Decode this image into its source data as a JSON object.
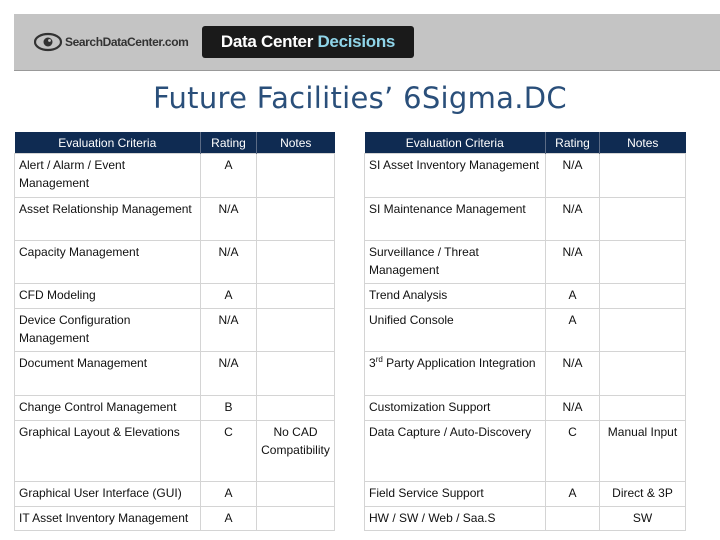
{
  "banner": {
    "logo_text": "SearchDataCenter.com",
    "product_part1": "Data Center ",
    "product_part2": "Decisions",
    "colors": {
      "banner_bg": "#c4c4c4",
      "product_bg": "#1a1a1a",
      "accent": "#8fd4e8"
    }
  },
  "title": "Future Facilities’ 6Sigma.DC",
  "table_header": {
    "criteria": "Evaluation Criteria",
    "rating": "Rating",
    "notes": "Notes",
    "color": "#0f2b52"
  },
  "left_rows": [
    {
      "criteria": "Alert / Alarm / Event Management",
      "rating": "A",
      "notes": ""
    },
    {
      "criteria": "Asset Relationship Management",
      "rating": "N/A",
      "notes": ""
    },
    {
      "criteria": "Capacity Management",
      "rating": "N/A",
      "notes": ""
    },
    {
      "criteria": "CFD Modeling",
      "rating": "A",
      "notes": ""
    },
    {
      "criteria": "Device Configuration Management",
      "rating": "N/A",
      "notes": ""
    },
    {
      "criteria": "Document Management",
      "rating": "N/A",
      "notes": ""
    },
    {
      "criteria": "Change Control Management",
      "rating": "B",
      "notes": ""
    },
    {
      "criteria": "Graphical Layout & Elevations",
      "rating": "C",
      "notes": "No CAD Compatibility"
    },
    {
      "criteria": "Graphical User Interface (GUI)",
      "rating": "A",
      "notes": ""
    },
    {
      "criteria": "IT Asset Inventory Management",
      "rating": "A",
      "notes": ""
    }
  ],
  "right_rows": [
    {
      "criteria": "SI Asset Inventory Management",
      "rating": "N/A",
      "notes": ""
    },
    {
      "criteria": "SI Maintenance Management",
      "rating": "N/A",
      "notes": ""
    },
    {
      "criteria": "Surveillance / Threat Management",
      "rating": "N/A",
      "notes": ""
    },
    {
      "criteria": "Trend Analysis",
      "rating": "A",
      "notes": ""
    },
    {
      "criteria": "Unified Console",
      "rating": "A",
      "notes": ""
    },
    {
      "criteria_prefix": "3",
      "criteria_sup": "rd",
      "criteria": " Party Application Integration",
      "rating": "N/A",
      "notes": ""
    },
    {
      "criteria": "Customization Support",
      "rating": "N/A",
      "notes": ""
    },
    {
      "criteria": "Data Capture / Auto-Discovery",
      "rating": "C",
      "notes": "Manual Input"
    },
    {
      "criteria": "Field Service Support",
      "rating": "A",
      "notes": "Direct & 3P"
    },
    {
      "criteria": "HW / SW / Web / Saa.S",
      "rating": "",
      "notes": "SW"
    }
  ]
}
